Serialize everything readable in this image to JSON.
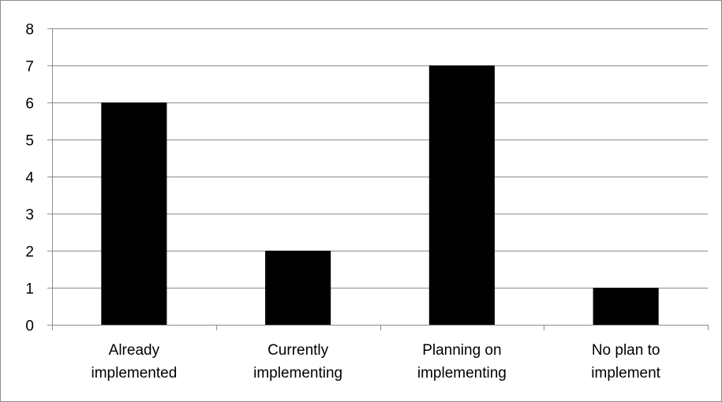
{
  "chart_data": {
    "type": "bar",
    "title": "",
    "xlabel": "",
    "ylabel": "",
    "categories": [
      [
        "Already",
        "implemented"
      ],
      [
        "Currently",
        "implementing"
      ],
      [
        "Planning on",
        "implementing"
      ],
      [
        "No plan to",
        "implement"
      ]
    ],
    "values": [
      6,
      2,
      7,
      1
    ],
    "ylim": [
      0,
      8
    ],
    "yticks": [
      0,
      1,
      2,
      3,
      4,
      5,
      6,
      7,
      8
    ],
    "grid": true,
    "legend": false,
    "colors": {
      "bar": "#000000",
      "grid": "#8c8c8c",
      "axis": "#8c8c8c"
    }
  }
}
